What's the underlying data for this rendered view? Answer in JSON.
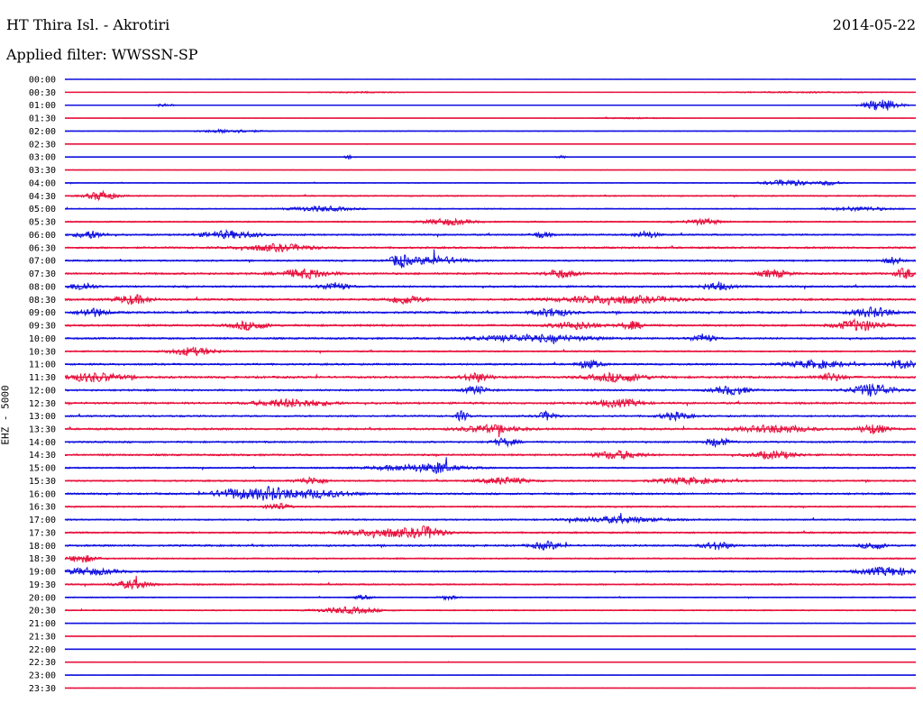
{
  "header": {
    "station": "HT Thira Isl. - Akrotiri",
    "date": "2014-05-22",
    "filter": "Applied filter: WWSSN-SP"
  },
  "axis": {
    "ylabel": "EHZ - 5000"
  },
  "colors": {
    "even_trace": "#1010e0",
    "odd_trace": "#e8103c",
    "text": "#000000",
    "background": "#ffffff"
  },
  "chart_data": {
    "type": "line",
    "title": "HT Thira Isl. - Akrotiri",
    "subtitle": "Applied filter: WWSSN-SP",
    "ylabel": "EHZ - 5000",
    "xlabel": "",
    "x_unit": "minutes within each 30-min row",
    "xlim": [
      0,
      30
    ],
    "grid": false,
    "legend": "none",
    "row_labels": [
      "00:00",
      "00:30",
      "01:00",
      "01:30",
      "02:00",
      "02:30",
      "03:00",
      "03:30",
      "04:00",
      "04:30",
      "05:00",
      "05:30",
      "06:00",
      "06:30",
      "07:00",
      "07:30",
      "08:00",
      "08:30",
      "09:00",
      "09:30",
      "10:00",
      "10:30",
      "11:00",
      "11:30",
      "12:00",
      "12:30",
      "13:00",
      "13:30",
      "14:00",
      "14:30",
      "15:00",
      "15:30",
      "16:00",
      "16:30",
      "17:00",
      "17:30",
      "18:00",
      "18:30",
      "19:00",
      "19:30",
      "20:00",
      "20:30",
      "21:00",
      "21:30",
      "22:00",
      "22:30",
      "23:00",
      "23:30"
    ],
    "rows": [
      {
        "label": "00:00",
        "noise": 0.3,
        "bursts": []
      },
      {
        "label": "00:30",
        "noise": 0.4,
        "bursts": [
          [
            10.5,
            1.5,
            0.3
          ],
          [
            26,
            3,
            0.3
          ]
        ]
      },
      {
        "label": "01:00",
        "noise": 0.4,
        "bursts": [
          [
            3.5,
            0.3,
            0.8
          ],
          [
            28.8,
            0.6,
            3
          ]
        ]
      },
      {
        "label": "01:30",
        "noise": 0.3,
        "bursts": [
          [
            20,
            1.5,
            0.3
          ]
        ]
      },
      {
        "label": "02:00",
        "noise": 0.6,
        "bursts": [
          [
            5.8,
            1,
            0.8
          ]
        ]
      },
      {
        "label": "02:30",
        "noise": 0.3,
        "bursts": []
      },
      {
        "label": "03:00",
        "noise": 0.4,
        "bursts": [
          [
            10,
            0.2,
            0.8
          ],
          [
            17.5,
            0.2,
            0.7
          ]
        ]
      },
      {
        "label": "03:30",
        "noise": 0.5,
        "bursts": []
      },
      {
        "label": "04:00",
        "noise": 0.7,
        "bursts": [
          [
            25.5,
            0.8,
            1.4
          ],
          [
            27,
            0.4,
            1
          ]
        ]
      },
      {
        "label": "04:30",
        "noise": 1.1,
        "bursts": [
          [
            1.3,
            0.5,
            2.2
          ]
        ]
      },
      {
        "label": "05:00",
        "noise": 1.0,
        "bursts": [
          [
            9,
            1,
            1.2
          ],
          [
            28,
            1,
            0.9
          ]
        ]
      },
      {
        "label": "05:30",
        "noise": 1.2,
        "bursts": [
          [
            13.5,
            0.8,
            1.4
          ],
          [
            22.5,
            0.6,
            1.3
          ]
        ]
      },
      {
        "label": "06:00",
        "noise": 1.4,
        "bursts": [
          [
            0.9,
            0.5,
            1.8
          ],
          [
            5.8,
            1,
            1.8
          ],
          [
            16.8,
            0.3,
            1.5
          ],
          [
            20.5,
            0.4,
            1.6
          ]
        ]
      },
      {
        "label": "06:30",
        "noise": 1.6,
        "bursts": [
          [
            7.5,
            1.2,
            1.6
          ]
        ]
      },
      {
        "label": "07:00",
        "noise": 1.4,
        "bursts": [
          [
            11.8,
            0.3,
            3
          ],
          [
            13,
            1,
            2
          ],
          [
            29.2,
            0.3,
            1.7
          ]
        ]
      },
      {
        "label": "07:30",
        "noise": 1.7,
        "bursts": [
          [
            8.5,
            0.8,
            2.3
          ],
          [
            17.5,
            0.5,
            2
          ],
          [
            25,
            0.5,
            1.8
          ],
          [
            29.6,
            0.3,
            2.6
          ]
        ]
      },
      {
        "label": "08:00",
        "noise": 1.6,
        "bursts": [
          [
            0.6,
            0.4,
            2
          ],
          [
            9.5,
            0.5,
            1.8
          ],
          [
            23,
            0.5,
            1.8
          ]
        ]
      },
      {
        "label": "08:30",
        "noise": 1.7,
        "bursts": [
          [
            2.4,
            0.6,
            2.2
          ],
          [
            12,
            0.6,
            2
          ],
          [
            19.5,
            2,
            1.8
          ]
        ]
      },
      {
        "label": "09:00",
        "noise": 1.8,
        "bursts": [
          [
            1,
            0.5,
            2
          ],
          [
            17.2,
            0.6,
            2
          ],
          [
            28.5,
            0.7,
            2.3
          ]
        ]
      },
      {
        "label": "09:30",
        "noise": 1.7,
        "bursts": [
          [
            6.5,
            0.6,
            2
          ],
          [
            18,
            0.8,
            1.8
          ],
          [
            20,
            0.4,
            1.8
          ],
          [
            28,
            0.8,
            2.6
          ]
        ]
      },
      {
        "label": "10:00",
        "noise": 1.6,
        "bursts": [
          [
            16.5,
            2,
            1.6
          ],
          [
            22.5,
            0.4,
            2
          ]
        ]
      },
      {
        "label": "10:30",
        "noise": 1.3,
        "bursts": [
          [
            4.5,
            0.8,
            1.8
          ]
        ]
      },
      {
        "label": "11:00",
        "noise": 1.6,
        "bursts": [
          [
            18.5,
            0.4,
            1.8
          ],
          [
            26.5,
            1,
            1.8
          ],
          [
            29.5,
            0.5,
            2
          ]
        ]
      },
      {
        "label": "11:30",
        "noise": 1.8,
        "bursts": [
          [
            1,
            1,
            2.1
          ],
          [
            14.5,
            0.5,
            2
          ],
          [
            19.5,
            1,
            2
          ],
          [
            27,
            0.5,
            1.9
          ]
        ]
      },
      {
        "label": "12:00",
        "noise": 1.6,
        "bursts": [
          [
            14.5,
            0.4,
            1.8
          ],
          [
            23.5,
            0.6,
            2
          ],
          [
            28.5,
            0.7,
            3
          ]
        ]
      },
      {
        "label": "12:30",
        "noise": 1.7,
        "bursts": [
          [
            8,
            1.2,
            1.9
          ],
          [
            19.5,
            0.8,
            1.8
          ]
        ]
      },
      {
        "label": "13:00",
        "noise": 1.5,
        "bursts": [
          [
            14,
            0.2,
            2.5
          ],
          [
            17,
            0.3,
            2.1
          ],
          [
            21.5,
            0.5,
            1.8
          ]
        ]
      },
      {
        "label": "13:30",
        "noise": 1.7,
        "bursts": [
          [
            15,
            1,
            1.8
          ],
          [
            25,
            1.2,
            1.8
          ],
          [
            28.5,
            0.5,
            2.2
          ]
        ]
      },
      {
        "label": "14:00",
        "noise": 1.5,
        "bursts": [
          [
            15.5,
            0.4,
            1.8
          ],
          [
            23,
            0.4,
            2
          ]
        ]
      },
      {
        "label": "14:30",
        "noise": 1.6,
        "bursts": [
          [
            19.5,
            0.8,
            2
          ],
          [
            25,
            0.8,
            1.7
          ]
        ]
      },
      {
        "label": "15:00",
        "noise": 1.3,
        "bursts": [
          [
            12.5,
            1.5,
            1.6
          ],
          [
            13.2,
            0.3,
            1.7
          ]
        ]
      },
      {
        "label": "15:30",
        "noise": 1.4,
        "bursts": [
          [
            8.7,
            0.5,
            1.6
          ],
          [
            15.5,
            0.8,
            1.6
          ],
          [
            22,
            1.2,
            1.4
          ]
        ]
      },
      {
        "label": "16:00",
        "noise": 1.6,
        "bursts": [
          [
            6,
            0.8,
            2.3
          ],
          [
            7.2,
            0.5,
            2.2
          ],
          [
            8.5,
            1.5,
            2
          ]
        ]
      },
      {
        "label": "16:30",
        "noise": 1.3,
        "bursts": [
          [
            7.5,
            0.4,
            1.6
          ]
        ]
      },
      {
        "label": "17:00",
        "noise": 1.3,
        "bursts": [
          [
            19.5,
            1.5,
            1.4
          ]
        ]
      },
      {
        "label": "17:30",
        "noise": 1.5,
        "bursts": [
          [
            11.5,
            1.5,
            2
          ],
          [
            12.8,
            0.5,
            2
          ]
        ]
      },
      {
        "label": "18:00",
        "noise": 1.6,
        "bursts": [
          [
            17,
            0.5,
            1.9
          ],
          [
            23,
            0.5,
            1.8
          ],
          [
            28.5,
            0.4,
            1.7
          ]
        ]
      },
      {
        "label": "18:30",
        "noise": 1.2,
        "bursts": [
          [
            0.6,
            0.5,
            1.8
          ]
        ]
      },
      {
        "label": "19:00",
        "noise": 1.4,
        "bursts": [
          [
            0.8,
            1,
            1.6
          ],
          [
            29,
            1,
            2
          ]
        ]
      },
      {
        "label": "19:30",
        "noise": 1.3,
        "bursts": [
          [
            2.4,
            0.6,
            2
          ]
        ]
      },
      {
        "label": "20:00",
        "noise": 0.9,
        "bursts": [
          [
            10.5,
            0.3,
            1
          ],
          [
            13.5,
            0.3,
            1
          ]
        ]
      },
      {
        "label": "20:30",
        "noise": 1.0,
        "bursts": [
          [
            10,
            1,
            1.5
          ]
        ]
      },
      {
        "label": "21:00",
        "noise": 0.7,
        "bursts": []
      },
      {
        "label": "21:30",
        "noise": 0.6,
        "bursts": []
      },
      {
        "label": "22:00",
        "noise": 0.4,
        "bursts": []
      },
      {
        "label": "22:30",
        "noise": 0.4,
        "bursts": []
      },
      {
        "label": "23:00",
        "noise": 0.4,
        "bursts": []
      },
      {
        "label": "23:30",
        "noise": 0.4,
        "bursts": []
      }
    ]
  }
}
